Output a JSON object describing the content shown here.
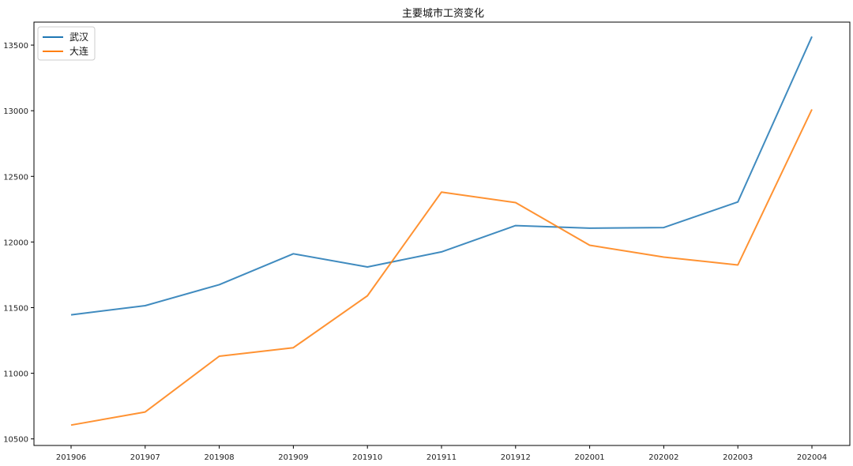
{
  "chart_data": {
    "type": "line",
    "title": "主要城市工资变化",
    "xlabel": "",
    "ylabel": "",
    "categories": [
      "201906",
      "201907",
      "201908",
      "201909",
      "201910",
      "201911",
      "201912",
      "202001",
      "202002",
      "202003",
      "202004"
    ],
    "series": [
      {
        "name": "武汉",
        "color": "#1f77b4",
        "values": [
          11445,
          11515,
          11675,
          11910,
          11810,
          11925,
          12125,
          12105,
          12110,
          12305,
          13565
        ]
      },
      {
        "name": "大连",
        "color": "#ff7f0e",
        "values": [
          10605,
          10705,
          11130,
          11195,
          11590,
          12380,
          12300,
          11975,
          11885,
          11825,
          13010
        ]
      }
    ],
    "yticks": [
      10500,
      11000,
      11500,
      12000,
      12500,
      13000,
      13500
    ],
    "ylim": [
      10450,
      13675
    ],
    "grid": false,
    "legend_position": "top-left"
  }
}
